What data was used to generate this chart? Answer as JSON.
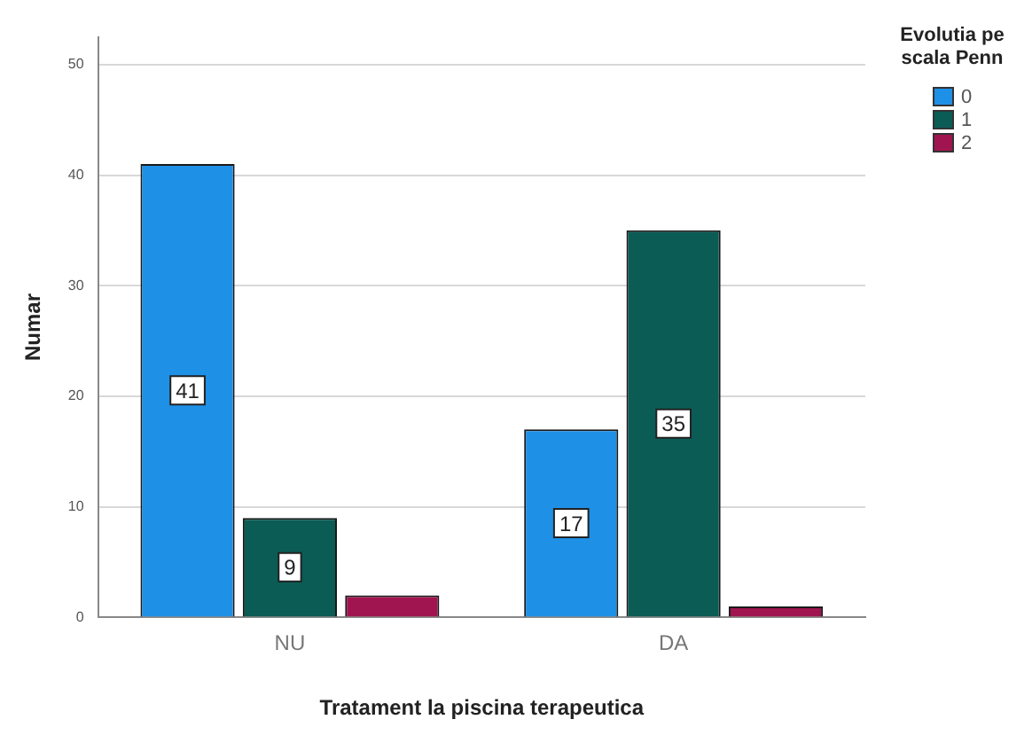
{
  "chart_data": {
    "type": "bar",
    "xlabel": "Tratament la piscina terapeutica",
    "ylabel": "Numar",
    "legend_title": "Evolutia pe scala Penn",
    "legend": "top right",
    "categories": [
      "NU",
      "DA"
    ],
    "series": [
      {
        "name": "0",
        "color": "#1e90e6",
        "values": [
          41,
          17
        ],
        "value_labels": [
          "41",
          "17"
        ]
      },
      {
        "name": "1",
        "color": "#0b5c55",
        "values": [
          9,
          35
        ],
        "value_labels": [
          "9",
          "35"
        ]
      },
      {
        "name": "2",
        "color": "#a0154f",
        "values": [
          2,
          1
        ],
        "value_labels": [
          null,
          null
        ]
      }
    ],
    "ylim": [
      0,
      52.5
    ],
    "yticks": [
      0,
      10,
      20,
      30,
      40,
      50
    ],
    "grid": "y"
  }
}
